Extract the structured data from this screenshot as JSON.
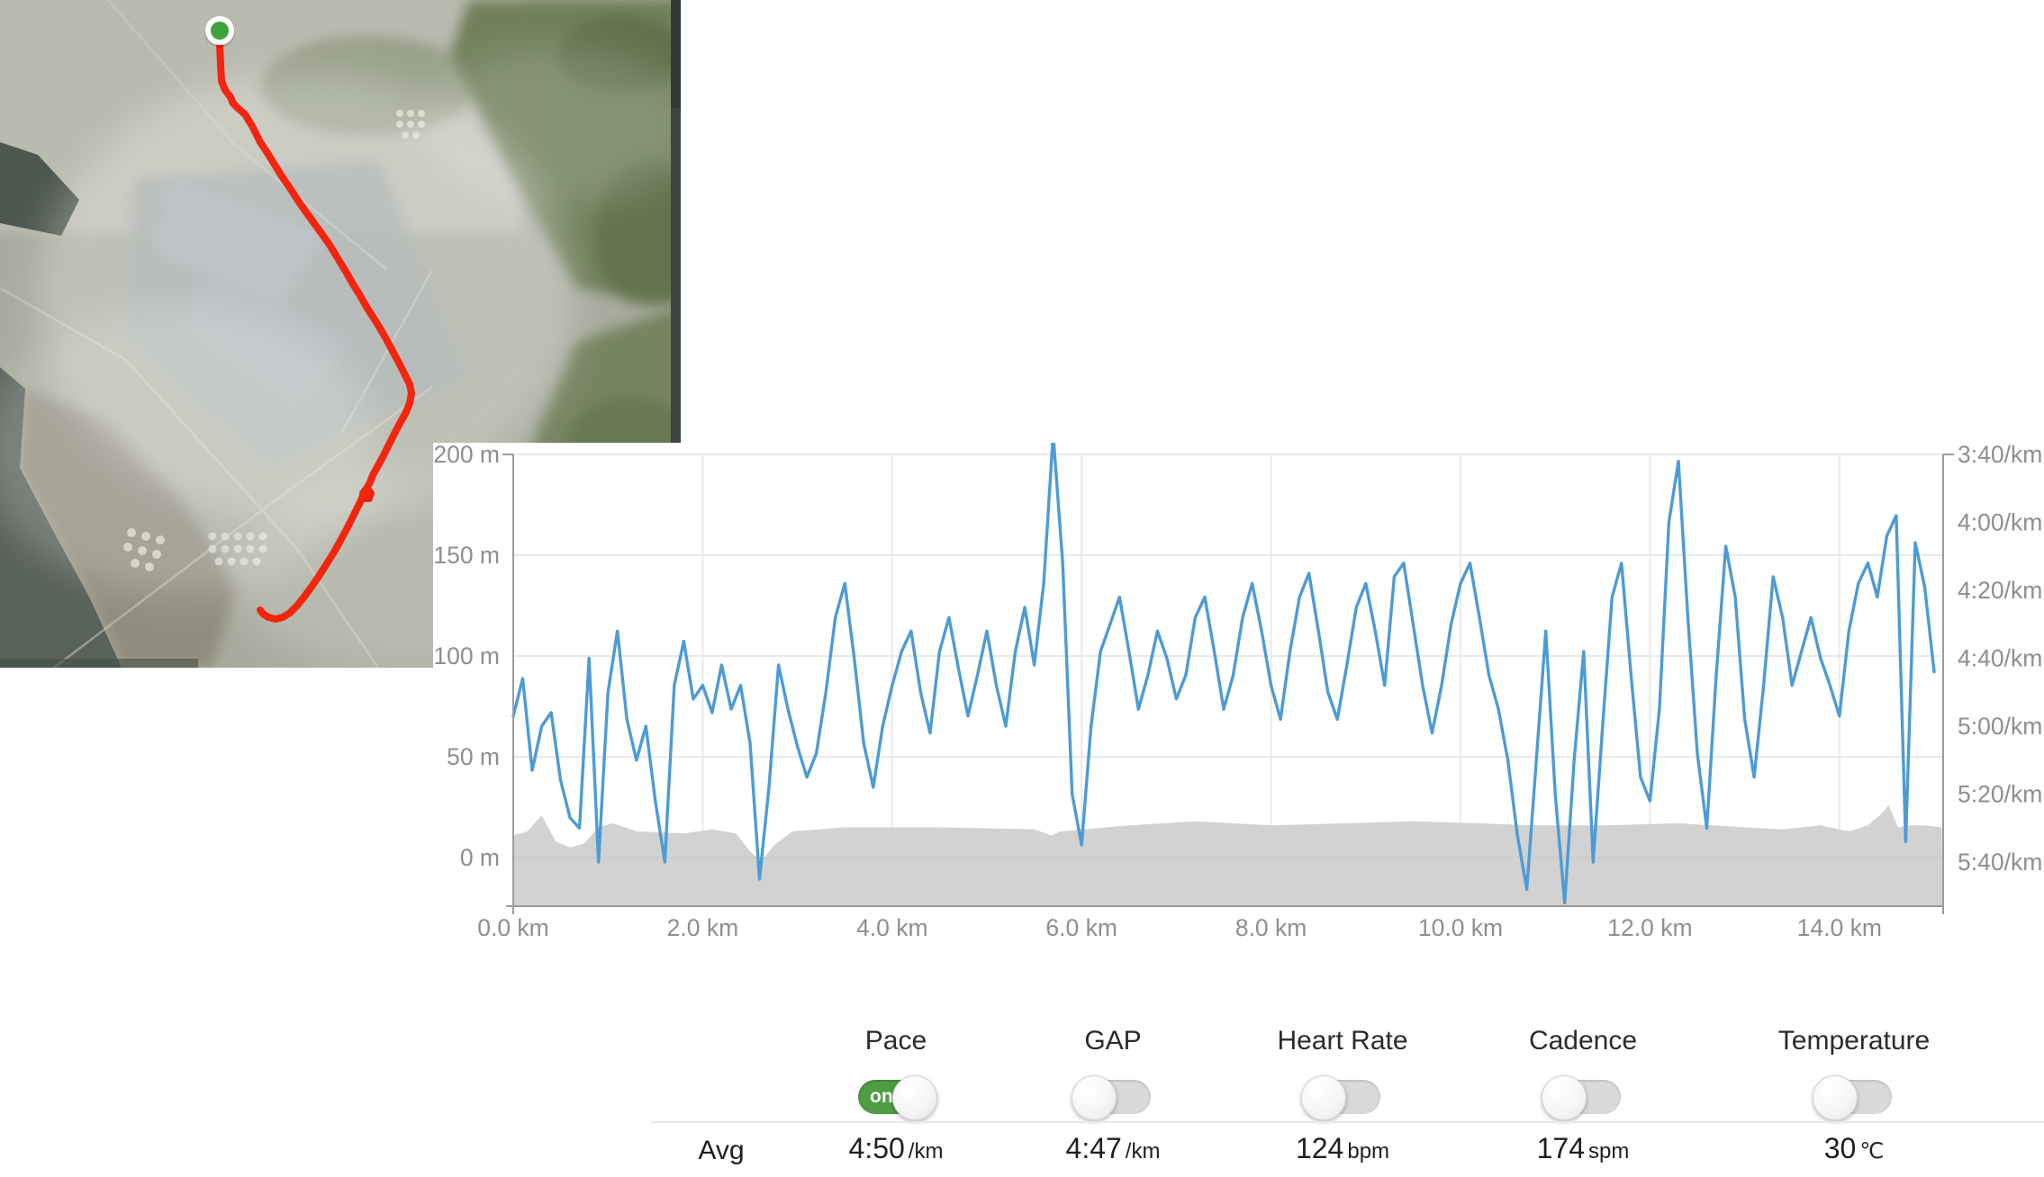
{
  "map": {
    "route_color": "#f3250f",
    "start_marker_color": "#3fa23c",
    "start": [
      244,
      34
    ],
    "route_points": [
      [
        244,
        49
      ],
      [
        245,
        72
      ],
      [
        246,
        90
      ],
      [
        250,
        100
      ],
      [
        256,
        108
      ],
      [
        259,
        115
      ],
      [
        264,
        120
      ],
      [
        272,
        127
      ],
      [
        280,
        140
      ],
      [
        289,
        158
      ],
      [
        297,
        170
      ],
      [
        305,
        183
      ],
      [
        313,
        196
      ],
      [
        322,
        209
      ],
      [
        333,
        226
      ],
      [
        343,
        240
      ],
      [
        356,
        258
      ],
      [
        366,
        272
      ],
      [
        375,
        287
      ],
      [
        383,
        300
      ],
      [
        391,
        314
      ],
      [
        399,
        327
      ],
      [
        407,
        341
      ],
      [
        414,
        352
      ],
      [
        421,
        363
      ],
      [
        429,
        377
      ],
      [
        437,
        392
      ],
      [
        444,
        405
      ],
      [
        450,
        417
      ],
      [
        455,
        427
      ],
      [
        457,
        437
      ],
      [
        455,
        448
      ],
      [
        451,
        458
      ],
      [
        446,
        467
      ],
      [
        440,
        478
      ],
      [
        434,
        490
      ],
      [
        429,
        500
      ],
      [
        424,
        510
      ],
      [
        419,
        519
      ],
      [
        414,
        528
      ],
      [
        411,
        536
      ],
      [
        407,
        543
      ],
      [
        403,
        548
      ],
      [
        404,
        554
      ],
      [
        410,
        554
      ],
      [
        412,
        548
      ],
      [
        408,
        543
      ],
      [
        404,
        549
      ],
      [
        400,
        558
      ],
      [
        395,
        568
      ],
      [
        390,
        578
      ],
      [
        385,
        588
      ],
      [
        379,
        599
      ],
      [
        373,
        610
      ],
      [
        367,
        620
      ],
      [
        360,
        631
      ],
      [
        353,
        642
      ],
      [
        346,
        652
      ],
      [
        338,
        663
      ],
      [
        330,
        673
      ],
      [
        322,
        681
      ],
      [
        314,
        686
      ],
      [
        306,
        688
      ],
      [
        298,
        686
      ],
      [
        292,
        682
      ],
      [
        289,
        678
      ]
    ]
  },
  "chart_data": {
    "type": "line",
    "grid": true,
    "legend": "none",
    "x_axis": {
      "unit": "km",
      "range_km": [
        0,
        15.1
      ],
      "tick_km": [
        0,
        2,
        4,
        6,
        8,
        10,
        12,
        14
      ],
      "ticks": [
        "0.0 km",
        "2.0 km",
        "4.0 km",
        "6.0 km",
        "8.0 km",
        "10.0 km",
        "12.0 km",
        "14.0 km"
      ]
    },
    "left_axis": {
      "name": "elevation",
      "range_m": [
        -24,
        200
      ],
      "tick_m": [
        200,
        150,
        100,
        50,
        0
      ],
      "ticks": [
        "200 m",
        "150 m",
        "100 m",
        "50 m",
        "0 m"
      ]
    },
    "right_axis": {
      "name": "pace",
      "range_sec_per_km": [
        220,
        353
      ],
      "tick_sec": [
        220,
        240,
        260,
        280,
        300,
        320,
        340
      ],
      "ticks": [
        "3:40/km",
        "4:00/km",
        "4:20/km",
        "4:40/km",
        "5:00/km",
        "5:20/km",
        "5:40/km"
      ]
    },
    "series": [
      {
        "name": "Pace",
        "color": "#4D9BD5",
        "unit": "sec/km",
        "x_step_km": 0.1,
        "values": [
          297,
          286,
          313,
          300,
          296,
          316,
          327,
          330,
          280,
          340,
          290,
          272,
          298,
          310,
          300,
          322,
          340,
          288,
          275,
          292,
          288,
          296,
          282,
          295,
          288,
          305,
          345,
          318,
          282,
          295,
          306,
          315,
          308,
          290,
          268,
          258,
          280,
          305,
          318,
          300,
          288,
          278,
          272,
          290,
          302,
          278,
          268,
          283,
          297,
          285,
          272,
          288,
          300,
          278,
          265,
          282,
          258,
          214,
          252,
          320,
          335,
          300,
          278,
          270,
          262,
          278,
          295,
          285,
          272,
          280,
          292,
          285,
          268,
          262,
          278,
          295,
          285,
          268,
          258,
          272,
          288,
          298,
          278,
          262,
          255,
          272,
          290,
          298,
          282,
          265,
          258,
          272,
          288,
          256,
          252,
          270,
          288,
          302,
          288,
          270,
          258,
          252,
          268,
          285,
          295,
          310,
          332,
          348,
          310,
          272,
          320,
          352,
          310,
          278,
          340,
          300,
          262,
          252,
          285,
          315,
          322,
          295,
          240,
          222,
          268,
          308,
          330,
          285,
          247,
          262,
          298,
          315,
          288,
          256,
          268,
          288,
          278,
          268,
          280,
          288,
          297,
          272,
          258,
          252,
          262,
          244,
          238,
          334,
          246,
          259,
          284
        ]
      },
      {
        "name": "Elevation",
        "color": "#d2d2d2",
        "unit": "m",
        "points": [
          [
            0,
            11
          ],
          [
            0.15,
            13
          ],
          [
            0.3,
            21
          ],
          [
            0.45,
            8
          ],
          [
            0.6,
            5
          ],
          [
            0.75,
            7
          ],
          [
            0.9,
            15
          ],
          [
            1.05,
            17
          ],
          [
            1.3,
            13
          ],
          [
            1.8,
            12
          ],
          [
            2.1,
            14
          ],
          [
            2.35,
            12
          ],
          [
            2.5,
            3
          ],
          [
            2.62,
            -2
          ],
          [
            2.75,
            6
          ],
          [
            2.95,
            13
          ],
          [
            3.5,
            15
          ],
          [
            4.5,
            15
          ],
          [
            5.5,
            14
          ],
          [
            5.68,
            11
          ],
          [
            5.78,
            13
          ],
          [
            6.5,
            16
          ],
          [
            7.2,
            18
          ],
          [
            8,
            16
          ],
          [
            8.8,
            17
          ],
          [
            9.5,
            18
          ],
          [
            10.2,
            17
          ],
          [
            10.8,
            16
          ],
          [
            11.5,
            16
          ],
          [
            12.3,
            17
          ],
          [
            13,
            15
          ],
          [
            13.4,
            14
          ],
          [
            13.8,
            16
          ],
          [
            14.1,
            13
          ],
          [
            14.3,
            16
          ],
          [
            14.45,
            22
          ],
          [
            14.52,
            26
          ],
          [
            14.62,
            15
          ],
          [
            14.75,
            16
          ],
          [
            14.9,
            16
          ],
          [
            15.08,
            15
          ]
        ]
      }
    ]
  },
  "controls": {
    "on_label": "on",
    "columns": [
      {
        "label": "Pace",
        "state": "on"
      },
      {
        "label": "GAP",
        "state": "off"
      },
      {
        "label": "Heart Rate",
        "state": "off"
      },
      {
        "label": "Cadence",
        "state": "off"
      },
      {
        "label": "Temperature",
        "state": "off"
      }
    ]
  },
  "summary": {
    "row_label": "Avg",
    "values": [
      {
        "value": "4:50",
        "unit": "/km"
      },
      {
        "value": "4:47",
        "unit": "/km"
      },
      {
        "value": "124",
        "unit": "bpm"
      },
      {
        "value": "174",
        "unit": "spm"
      },
      {
        "value": "30",
        "unit": "℃"
      }
    ]
  }
}
